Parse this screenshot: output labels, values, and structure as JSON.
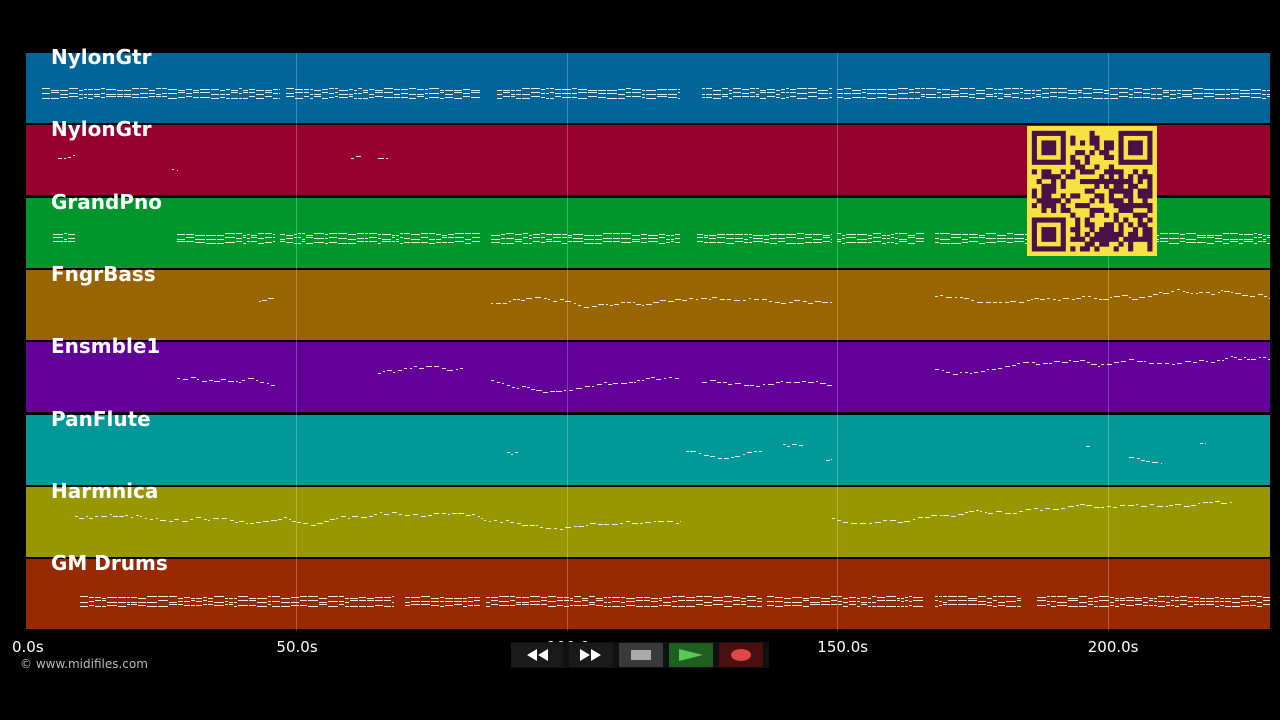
{
  "colors": {
    "background": "#000000",
    "note": "#f0f0f0",
    "qr_dark": "#4a1149",
    "qr_light": "#f7e244"
  },
  "timeline": {
    "unit": "s",
    "max_seconds": 230,
    "ticks": [
      {
        "value": 0,
        "label": "0.0s"
      },
      {
        "value": 50,
        "label": "50.0s"
      },
      {
        "value": 100,
        "label": "100.0s"
      },
      {
        "value": 150,
        "label": "150.0s"
      },
      {
        "value": 200,
        "label": "200.0s"
      }
    ]
  },
  "tracks": [
    {
      "name": "NylonGtr",
      "color": "#026599",
      "segments": [
        [
          3,
          47
        ],
        [
          48,
          84
        ],
        [
          87,
          121
        ],
        [
          125,
          149
        ],
        [
          150,
          230
        ]
      ]
    },
    {
      "name": "NylonGtr",
      "color": "#980032",
      "segments": [
        [
          6,
          9
        ],
        [
          27,
          28
        ],
        [
          60,
          62
        ],
        [
          65,
          67
        ]
      ]
    },
    {
      "name": "GrandPno",
      "color": "#00962c",
      "segments": [
        [
          5,
          9
        ],
        [
          28,
          46
        ],
        [
          47,
          84
        ],
        [
          86,
          121
        ],
        [
          124,
          149
        ],
        [
          150,
          166
        ],
        [
          168,
          230
        ]
      ]
    },
    {
      "name": "FngrBass",
      "color": "#986500",
      "segments": [
        [
          43,
          46
        ],
        [
          86,
          149
        ],
        [
          168,
          230
        ]
      ]
    },
    {
      "name": "Ensmble1",
      "color": "#620099",
      "segments": [
        [
          28,
          46
        ],
        [
          65,
          81
        ],
        [
          86,
          121
        ],
        [
          125,
          149
        ],
        [
          168,
          230
        ]
      ]
    },
    {
      "name": "PanFlute",
      "color": "#009898",
      "segments": [
        [
          89,
          91
        ],
        [
          122,
          136
        ],
        [
          140,
          144
        ],
        [
          148,
          149
        ],
        [
          196,
          197
        ],
        [
          204,
          210
        ],
        [
          217,
          218
        ]
      ]
    },
    {
      "name": "Harmnica",
      "color": "#989700",
      "segments": [
        [
          9,
          121
        ],
        [
          149,
          223
        ]
      ]
    },
    {
      "name": "GM Drums",
      "color": "#982900",
      "segments": [
        [
          10,
          68
        ],
        [
          70,
          84
        ],
        [
          85,
          136
        ],
        [
          137,
          166
        ],
        [
          168,
          184
        ],
        [
          187,
          230
        ]
      ]
    }
  ],
  "copyright": "© www.midifiles.com",
  "controls": {
    "rewind_icon": "rewind-icon",
    "forward_icon": "fast-forward-icon",
    "stop_icon": "stop-icon",
    "play_icon": "play-icon",
    "record_icon": "record-icon"
  }
}
